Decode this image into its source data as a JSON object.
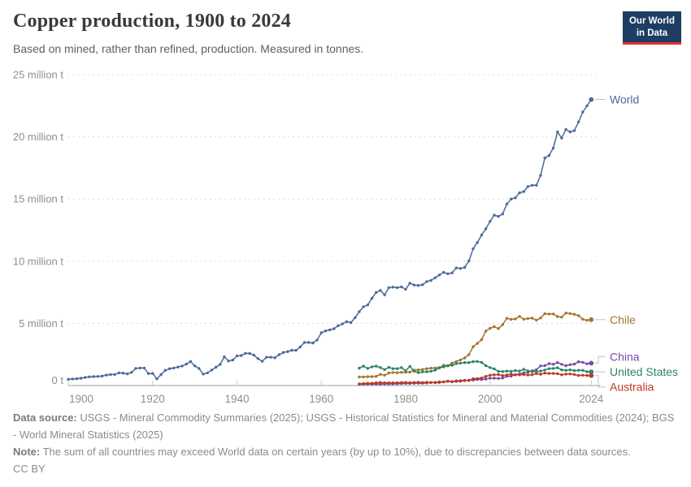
{
  "header": {
    "title": "Copper production, 1900 to 2024",
    "subtitle": "Based on mined, rather than refined, production. Measured in tonnes.",
    "logo": {
      "line1": "Our World",
      "line2": "in Data"
    }
  },
  "footer": {
    "data_source_label": "Data source:",
    "data_source_text": " USGS - Mineral Commodity Summaries (2025); USGS - Historical Statistics for Mineral and Material Commodities (2024); BGS - World Mineral Statistics (2025)",
    "note_label": "Note:",
    "note_text": " The sum of all countries may exceed World data on certain years (by up to 10%), due to discrepancies between data sources.",
    "license": "CC BY"
  },
  "colors": {
    "logo_bg": "#1d3d63",
    "logo_underline": "#e5332d",
    "axis_text": "#8f8f8f",
    "axis_line": "#9e9e9e",
    "tick_mark": "#c9c9c9",
    "gridline": "#dcdcdc",
    "leader_line": "#c2c2c2"
  },
  "chart_data": {
    "type": "line",
    "title": "Copper production, 1900 to 2024",
    "subtitle": "Based on mined, rather than refined, production. Measured in tonnes.",
    "values_unit": "million tonnes",
    "xlim": [
      1900,
      2024
    ],
    "ylim_million_t": [
      0,
      25
    ],
    "grid": "horizontal dashed",
    "legend_position": "right-edge entity labels with leader lines",
    "x_ticks": [
      1900,
      1920,
      1940,
      1960,
      1980,
      2000,
      2024
    ],
    "y_ticks": [
      {
        "value": 0,
        "label": "0 t"
      },
      {
        "value": 5,
        "label": "5 million t"
      },
      {
        "value": 10,
        "label": "10 million t"
      },
      {
        "value": 15,
        "label": "15 million t"
      },
      {
        "value": 20,
        "label": "20 million t"
      },
      {
        "value": 25,
        "label": "25 million t"
      }
    ],
    "series": [
      {
        "name": "World",
        "color": "#4C6A9C",
        "start_year": 1900,
        "label_dy": 0,
        "values": [
          0.5,
          0.53,
          0.55,
          0.59,
          0.65,
          0.7,
          0.72,
          0.73,
          0.76,
          0.84,
          0.89,
          0.89,
          1.02,
          1.0,
          0.94,
          1.06,
          1.38,
          1.41,
          1.41,
          0.96,
          0.97,
          0.54,
          0.88,
          1.23,
          1.35,
          1.41,
          1.49,
          1.57,
          1.72,
          1.93,
          1.58,
          1.38,
          0.92,
          1.02,
          1.25,
          1.47,
          1.7,
          2.31,
          1.98,
          2.05,
          2.38,
          2.41,
          2.59,
          2.58,
          2.45,
          2.16,
          1.95,
          2.27,
          2.28,
          2.23,
          2.49,
          2.66,
          2.73,
          2.84,
          2.83,
          3.11,
          3.46,
          3.46,
          3.42,
          3.66,
          4.24,
          4.39,
          4.48,
          4.57,
          4.81,
          4.96,
          5.14,
          5.06,
          5.46,
          5.94,
          6.34,
          6.48,
          7.02,
          7.49,
          7.65,
          7.29,
          7.87,
          7.91,
          7.87,
          7.93,
          7.74,
          8.23,
          8.08,
          8.05,
          8.11,
          8.36,
          8.45,
          8.67,
          8.89,
          9.1,
          8.99,
          9.06,
          9.46,
          9.41,
          9.5,
          10.02,
          11.0,
          11.5,
          12.1,
          12.6,
          13.2,
          13.7,
          13.6,
          13.8,
          14.6,
          15.0,
          15.1,
          15.5,
          15.6,
          16.0,
          16.1,
          16.1,
          16.9,
          18.3,
          18.5,
          19.1,
          20.4,
          19.9,
          20.6,
          20.4,
          20.5,
          21.2,
          22.0,
          22.5,
          23.0
        ]
      },
      {
        "name": "Chile",
        "color": "#A2762B",
        "start_year": 1969,
        "label_dy": 0,
        "values": [
          0.69,
          0.69,
          0.71,
          0.72,
          0.74,
          0.9,
          0.83,
          1.01,
          1.05,
          1.03,
          1.06,
          1.07,
          1.08,
          1.24,
          1.26,
          1.29,
          1.36,
          1.4,
          1.41,
          1.45,
          1.63,
          1.59,
          1.81,
          1.93,
          2.06,
          2.22,
          2.49,
          3.12,
          3.39,
          3.69,
          4.38,
          4.6,
          4.74,
          4.58,
          4.9,
          5.41,
          5.32,
          5.36,
          5.56,
          5.33,
          5.39,
          5.42,
          5.26,
          5.43,
          5.78,
          5.75,
          5.76,
          5.55,
          5.5,
          5.83,
          5.79,
          5.73,
          5.62,
          5.33,
          5.25,
          5.3
        ]
      },
      {
        "name": "China",
        "color": "#7A49A5",
        "start_year": 1969,
        "label_dy": -8,
        "values": [
          0.1,
          0.11,
          0.11,
          0.12,
          0.12,
          0.12,
          0.13,
          0.13,
          0.14,
          0.15,
          0.16,
          0.17,
          0.17,
          0.18,
          0.19,
          0.19,
          0.2,
          0.25,
          0.25,
          0.3,
          0.29,
          0.36,
          0.3,
          0.33,
          0.34,
          0.4,
          0.44,
          0.44,
          0.49,
          0.49,
          0.52,
          0.59,
          0.59,
          0.57,
          0.61,
          0.74,
          0.76,
          0.87,
          0.93,
          1.03,
          1.07,
          1.19,
          1.27,
          1.58,
          1.6,
          1.76,
          1.71,
          1.85,
          1.71,
          1.59,
          1.68,
          1.72,
          1.91,
          1.87,
          1.75,
          1.8
        ]
      },
      {
        "name": "United States",
        "color": "#2C8465",
        "start_year": 1969,
        "label_dy": 0,
        "values": [
          1.4,
          1.56,
          1.38,
          1.51,
          1.56,
          1.45,
          1.28,
          1.46,
          1.36,
          1.36,
          1.44,
          1.18,
          1.54,
          1.15,
          1.04,
          1.1,
          1.11,
          1.15,
          1.24,
          1.42,
          1.5,
          1.59,
          1.63,
          1.76,
          1.8,
          1.85,
          1.85,
          1.92,
          1.94,
          1.86,
          1.6,
          1.44,
          1.34,
          1.14,
          1.12,
          1.16,
          1.14,
          1.2,
          1.17,
          1.31,
          1.18,
          1.11,
          1.11,
          1.17,
          1.25,
          1.36,
          1.38,
          1.43,
          1.26,
          1.22,
          1.26,
          1.2,
          1.23,
          1.22,
          1.11,
          1.1
        ]
      },
      {
        "name": "Australia",
        "color": "#BC3A21",
        "start_year": 1969,
        "label_dy": 14,
        "values": [
          0.13,
          0.16,
          0.18,
          0.18,
          0.22,
          0.25,
          0.22,
          0.22,
          0.22,
          0.22,
          0.24,
          0.24,
          0.23,
          0.25,
          0.26,
          0.24,
          0.26,
          0.24,
          0.23,
          0.24,
          0.3,
          0.33,
          0.32,
          0.38,
          0.4,
          0.42,
          0.4,
          0.55,
          0.56,
          0.61,
          0.74,
          0.83,
          0.87,
          0.88,
          0.8,
          0.85,
          0.93,
          0.86,
          0.86,
          0.89,
          0.85,
          0.87,
          0.96,
          0.91,
          1.0,
          0.97,
          0.97,
          0.95,
          0.86,
          0.92,
          0.93,
          0.89,
          0.81,
          0.83,
          0.81,
          0.8
        ]
      }
    ]
  }
}
